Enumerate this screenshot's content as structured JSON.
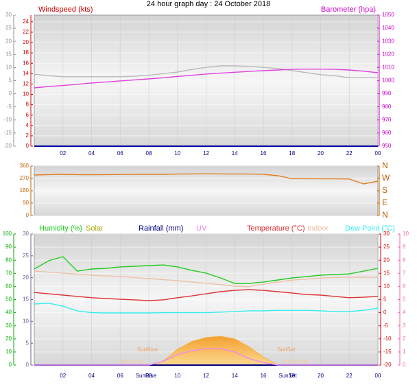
{
  "chart_data": [
    {
      "type": "line",
      "title": "24 hour graph day : 24 October 2018",
      "y_label": "Windspeed (kts)",
      "y2_label": "Barometer (hpa)",
      "xlim": [
        0,
        24
      ],
      "xticks": [
        {
          "value": 2,
          "label": "02"
        },
        {
          "value": 4,
          "label": "04"
        },
        {
          "value": 6,
          "label": "06"
        },
        {
          "value": 8,
          "label": "08"
        },
        10,
        12,
        14,
        16,
        18,
        20,
        22,
        {
          "value": 24,
          "label": "00"
        }
      ],
      "ylim": [
        0,
        25.3
      ],
      "yticks": [
        0,
        2,
        4,
        6,
        8,
        10,
        12,
        14,
        16,
        18,
        20,
        22,
        24
      ],
      "y_color": "#cc0000",
      "y3lim": [
        -20,
        30
      ],
      "y3ticks": [
        -20,
        -15,
        -10,
        -5,
        0,
        5,
        10,
        15,
        20,
        25,
        30
      ],
      "y3_color": "#909090",
      "y2lim": [
        950,
        1050
      ],
      "y2ticks": [
        950,
        960,
        970,
        980,
        990,
        1000,
        1010,
        1020,
        1030,
        1040,
        1050
      ],
      "y2_color": "#cc00cc",
      "grid": true,
      "x": [
        0,
        1,
        2,
        3,
        4,
        5,
        6,
        7,
        8,
        9,
        10,
        11,
        12,
        13,
        14,
        15,
        16,
        17,
        18,
        19,
        20,
        21,
        22,
        23,
        24
      ],
      "series": [
        {
          "color": "#b8b8b8",
          "values": [
            13.9,
            13.6,
            13.4,
            13.4,
            13.4,
            13.4,
            13.4,
            13.5,
            13.7,
            14.0,
            14.3,
            14.8,
            15.2,
            15.5,
            15.5,
            15.4,
            15.2,
            15.0,
            14.6,
            14.2,
            13.8,
            13.6,
            13.2,
            13.2,
            13.2
          ]
        },
        {
          "color": "#0000a0",
          "values": [
            0,
            0,
            0,
            0,
            0,
            0,
            0,
            0,
            0,
            0,
            0,
            0,
            0,
            0,
            0,
            0,
            0,
            0,
            0,
            0,
            0,
            0,
            0,
            0,
            0
          ]
        },
        {
          "color": "#e040e0",
          "axis": "y2",
          "values": [
            994.5,
            995.5,
            996.3,
            997.2,
            998.2,
            999,
            999.8,
            1000.6,
            1001.3,
            1002.2,
            1003.2,
            1004.1,
            1005,
            1005.7,
            1006.4,
            1007,
            1007.6,
            1008.1,
            1008.6,
            1008.8,
            1008.8,
            1008.6,
            1008.1,
            1007.2,
            1006
          ]
        }
      ]
    },
    {
      "type": "line",
      "xlim": [
        0,
        24
      ],
      "ylim": [
        0,
        360
      ],
      "yticks": [
        0,
        90,
        180,
        270,
        360
      ],
      "y_color": "#c06000",
      "y2lim": [
        0,
        360
      ],
      "y2ticks": [
        {
          "value": 0,
          "label": "N"
        },
        {
          "value": 90,
          "label": "E"
        },
        {
          "value": 180,
          "label": "S"
        },
        {
          "value": 270,
          "label": "W"
        },
        {
          "value": 360,
          "label": "N"
        }
      ],
      "y2_color": "#c06000",
      "grid": true,
      "x": [
        0,
        1,
        2,
        3,
        4,
        5,
        6,
        7,
        8,
        9,
        10,
        11,
        12,
        13,
        14,
        15,
        16,
        17,
        18,
        19,
        20,
        21,
        22,
        23,
        24
      ],
      "series": [
        {
          "color": "#e08020",
          "values": [
            295,
            298,
            300,
            298,
            297,
            298,
            299,
            300,
            300,
            300,
            302,
            303,
            304,
            303,
            302,
            302,
            300,
            290,
            268,
            268,
            267,
            267,
            266,
            230,
            250
          ]
        }
      ]
    },
    {
      "type": "line",
      "xlim": [
        0,
        24
      ],
      "xticks": [
        {
          "value": 2,
          "label": "02"
        },
        {
          "value": 4,
          "label": "04"
        },
        {
          "value": 6,
          "label": "06"
        },
        {
          "value": 8,
          "label": "08"
        },
        10,
        12,
        14,
        16,
        18,
        20,
        22,
        {
          "value": 24,
          "label": "00"
        }
      ],
      "ylim": [
        0,
        100
      ],
      "yticks": [
        0,
        10,
        20,
        30,
        40,
        50,
        60,
        70,
        80,
        90,
        100
      ],
      "y_color": "#00aa00",
      "y3lim": [
        0,
        30
      ],
      "y3ticks": [
        0,
        5,
        10,
        15,
        20,
        25,
        30
      ],
      "y3_color": "#606090",
      "y2lim": [
        -20,
        30
      ],
      "y2ticks": [
        -20,
        -15,
        -10,
        -5,
        0,
        5,
        10,
        15,
        20,
        25,
        30
      ],
      "y2_color": "#cc0000",
      "y4lim": [
        0,
        10
      ],
      "y4ticks": [
        0,
        1,
        2,
        3,
        4,
        5,
        6,
        7,
        8,
        9,
        10
      ],
      "y4_color": "#ee66aa",
      "grid": true,
      "legend": true,
      "x": [
        0,
        1,
        2,
        3,
        4,
        5,
        6,
        7,
        8,
        9,
        10,
        11,
        12,
        13,
        14,
        15,
        16,
        17,
        18,
        19,
        20,
        21,
        22,
        23,
        24
      ],
      "series": [
        {
          "name": "Humidity (%)",
          "color": "#22cc22",
          "values": [
            73.3,
            79.6,
            82.7,
            71.7,
            73.3,
            73.8,
            74.9,
            75.4,
            75.9,
            76.4,
            74.9,
            72.3,
            70.2,
            66.5,
            62.3,
            62.3,
            63.4,
            64.9,
            66.5,
            67.5,
            68.6,
            69.1,
            69.6,
            71.7,
            73.8
          ]
        },
        {
          "name": "Solar",
          "color": "#f4b040",
          "area": true,
          "values": [
            0,
            0,
            0,
            0,
            0,
            0,
            0,
            0,
            0,
            3,
            12,
            18,
            21,
            22,
            20,
            14,
            6,
            0,
            0,
            0,
            0,
            0,
            0,
            0,
            0
          ]
        },
        {
          "name": "Rainfall (mm)",
          "color": "#000080",
          "axis": "y3",
          "values": [
            0,
            0,
            0,
            0,
            0,
            0,
            0,
            0,
            0,
            0,
            0,
            0,
            0,
            0,
            0,
            0,
            0,
            0,
            0,
            0,
            0,
            0,
            0,
            0,
            0
          ]
        },
        {
          "name": "UV",
          "color": "#ee88ee",
          "axis": "y4",
          "values": [
            0,
            0,
            0,
            0,
            0,
            0,
            0,
            0,
            0,
            0.3,
            0.8,
            1.1,
            1.25,
            1.25,
            1.0,
            0.5,
            0.2,
            0,
            0,
            0,
            0,
            0,
            0,
            0,
            0
          ]
        },
        {
          "name": "Temperature (°C)",
          "color": "#dd3333",
          "axis": "y2",
          "values": [
            7.7,
            7.2,
            6.7,
            6.2,
            5.7,
            5.4,
            5.1,
            4.9,
            4.6,
            4.9,
            5.7,
            6.4,
            7.2,
            8.0,
            8.5,
            8.8,
            8.5,
            8.0,
            7.5,
            6.9,
            6.7,
            6.2,
            5.7,
            5.9,
            6.2
          ]
        },
        {
          "name": "Indoor",
          "color": "#eec0a8",
          "axis": "y2",
          "values": [
            15.9,
            15.5,
            15.1,
            14.7,
            14.3,
            14.0,
            13.8,
            13.4,
            13.0,
            12.6,
            12.2,
            11.7,
            11.2,
            10.7,
            10.1,
            9.9,
            10.9,
            11.7,
            12.4,
            12.8,
            13.2,
            13.4,
            13.5,
            13.5,
            13.5
          ]
        },
        {
          "name": "Dew Point (°C)",
          "color": "#33eeee",
          "axis": "y2",
          "values": [
            3.3,
            3.6,
            2.5,
            0.7,
            0,
            -0.1,
            -0.1,
            -0.1,
            -0.1,
            0,
            0,
            0,
            0,
            0.2,
            0.4,
            0.7,
            0.7,
            0.9,
            0.9,
            0.9,
            0.7,
            0.4,
            0.4,
            0.9,
            1.7
          ]
        }
      ],
      "annotations": [
        {
          "text": "SunRise",
          "x": 7.9,
          "y": 9.4,
          "color": "#f0a060"
        },
        {
          "text": "SunSet",
          "x": 17.6,
          "y": 9.4,
          "color": "#f0a060"
        },
        {
          "text": "Moon Set",
          "x": 6.7,
          "y": 0.5,
          "color": "#f4c8a0"
        },
        {
          "text": "Moon Rise",
          "x": 18.2,
          "y": 0.5,
          "color": "#f4c8a0"
        }
      ],
      "x_annotations": [
        {
          "text": "SunRise",
          "x": 7.8
        },
        {
          "text": "SunSet",
          "x": 17.7
        }
      ]
    }
  ]
}
